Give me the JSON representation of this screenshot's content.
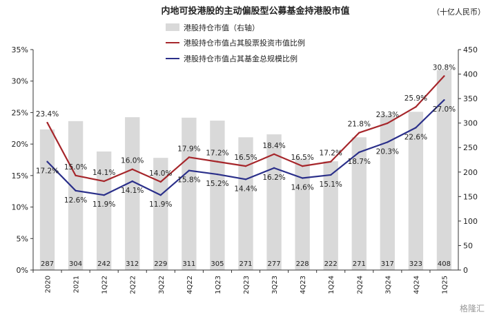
{
  "chart_data": {
    "type": "bar+line",
    "title": "内地可投港股的主动偏股型公募基金持港股市值",
    "unit_label": "（十亿人民币）",
    "categories": [
      "2020",
      "2021",
      "1Q22",
      "2Q22",
      "3Q22",
      "4Q22",
      "1Q23",
      "2Q23",
      "3Q23",
      "4Q23",
      "1Q24",
      "2Q24",
      "3Q24",
      "4Q24",
      "1Q25"
    ],
    "bars": {
      "name": "港股持仓市值（右轴）",
      "color": "#d9d9d9",
      "values": [
        287,
        304,
        242,
        312,
        229,
        311,
        305,
        271,
        277,
        228,
        222,
        271,
        317,
        323,
        408
      ],
      "labels": [
        "287",
        "304",
        "242",
        "312",
        "229",
        "311",
        "305",
        "271",
        "277",
        "228",
        "222",
        "271",
        "317",
        "323",
        "408"
      ]
    },
    "series": [
      {
        "name": "港股持仓市值占其股票投资市值比例",
        "color": "#a6262b",
        "values": [
          23.4,
          15.0,
          14.1,
          16.0,
          14.0,
          17.9,
          17.2,
          16.5,
          18.4,
          16.5,
          17.2,
          21.8,
          23.3,
          25.9,
          30.8
        ],
        "labels": [
          "23.4%",
          "15.0%",
          "14.1%",
          "16.0%",
          "14.0%",
          "17.9%",
          "17.2%",
          "16.5%",
          "18.4%",
          "16.5%",
          "17.2%",
          "21.8%",
          "23.3%",
          "25.9%",
          "30.8%"
        ]
      },
      {
        "name": "港股持仓市值占其基金总规模比例",
        "color": "#2a2f8a",
        "values": [
          17.2,
          12.6,
          11.9,
          14.1,
          11.9,
          15.8,
          15.2,
          14.4,
          16.2,
          14.6,
          15.1,
          18.7,
          20.3,
          22.6,
          27.0
        ],
        "labels": [
          "17.2%",
          "12.6%",
          "11.9%",
          "14.1%",
          "11.9%",
          "15.8%",
          "15.2%",
          "14.4%",
          "16.2%",
          "14.6%",
          "15.1%",
          "18.7%",
          "20.3%",
          "22.6%",
          "27.0%"
        ]
      }
    ],
    "y_left": {
      "min": 0,
      "max": 35,
      "step": 5,
      "tick_labels": [
        "0%",
        "5%",
        "10%",
        "15%",
        "20%",
        "25%",
        "30%",
        "35%"
      ]
    },
    "y_right": {
      "min": 0,
      "max": 450,
      "step": 50,
      "tick_labels": [
        "0",
        "50",
        "100",
        "150",
        "200",
        "250",
        "300",
        "350",
        "400",
        "450"
      ]
    },
    "grid": false,
    "legend_position": "top-left"
  },
  "watermark": "格隆汇"
}
